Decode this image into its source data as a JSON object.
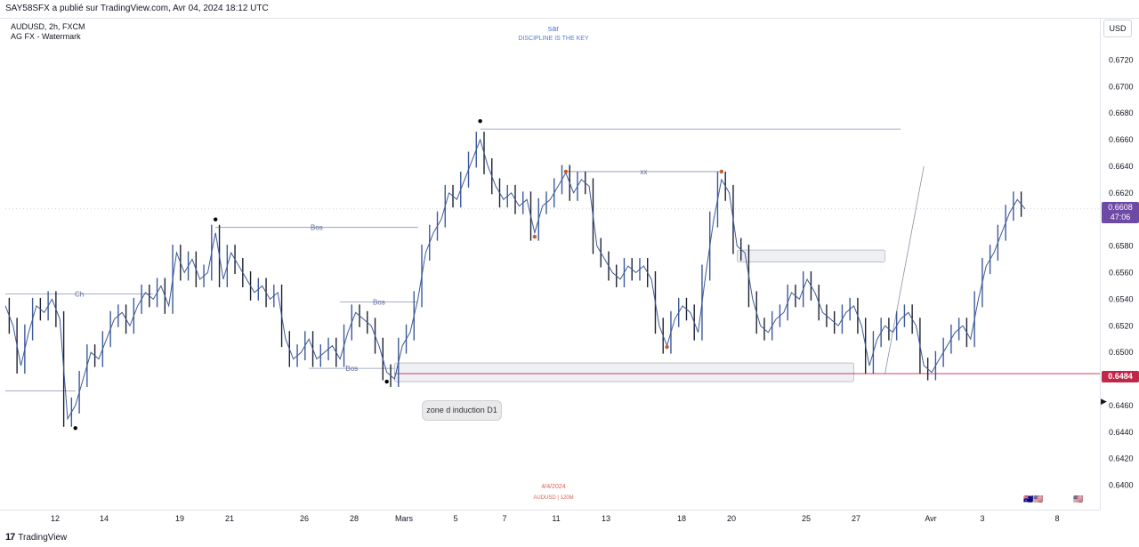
{
  "header": {
    "publisher_line": "SAY58SFX a publié sur TradingView.com, Avr 04, 2024 18:12 UTC",
    "symbol_line": "AUDUSD, 2h, FXCM",
    "indicator_line": "AG FX - Watermark",
    "currency_button": "USD"
  },
  "watermark": {
    "name": "sar",
    "motto": "DISCIPLINE IS THE KEY",
    "date": "4/4/2024",
    "pair": "AUDUSD | 120M"
  },
  "footer": {
    "brand": "TradingView"
  },
  "chart_data": {
    "type": "line",
    "instrument": "AUDUSD",
    "timeframe": "2h",
    "y_axis": {
      "ticks": [
        "0.6720",
        "0.6700",
        "0.6680",
        "0.6660",
        "0.6640",
        "0.6620",
        "0.6600",
        "0.6580",
        "0.6560",
        "0.6540",
        "0.6520",
        "0.6500",
        "0.6480",
        "0.6460",
        "0.6440",
        "0.6420",
        "0.6400"
      ],
      "range": [
        0.6385,
        0.6735
      ]
    },
    "x_axis": {
      "ticks": [
        "12",
        "14",
        "19",
        "21",
        "26",
        "28",
        "Mars",
        "5",
        "7",
        "11",
        "13",
        "18",
        "20",
        "25",
        "27",
        "Avr",
        "3",
        "8"
      ]
    },
    "current_price": {
      "value": "0.6608",
      "countdown": "47:06"
    },
    "key_level": {
      "value": "0.6484"
    },
    "series": [
      {
        "x": [
          "12",
          "14",
          "19",
          "21",
          "26",
          "28",
          "Mars",
          "5",
          "7",
          "11",
          "13",
          "18",
          "20",
          "25",
          "27",
          "Avr",
          "3"
        ],
        "values": [
          0.6525,
          0.645,
          0.6535,
          0.657,
          0.656,
          0.6495,
          0.651,
          0.6485,
          0.658,
          0.662,
          0.661,
          0.6565,
          0.652,
          0.653,
          0.6525,
          0.6495,
          0.652
        ]
      }
    ],
    "path": [
      [
        0,
        0.6535
      ],
      [
        1,
        0.652
      ],
      [
        2,
        0.649
      ],
      [
        3,
        0.6515
      ],
      [
        4,
        0.6535
      ],
      [
        5,
        0.653
      ],
      [
        6,
        0.654
      ],
      [
        7,
        0.6525
      ],
      [
        8,
        0.645
      ],
      [
        9,
        0.646
      ],
      [
        10,
        0.648
      ],
      [
        11,
        0.65
      ],
      [
        12,
        0.6495
      ],
      [
        13,
        0.651
      ],
      [
        14,
        0.6525
      ],
      [
        15,
        0.653
      ],
      [
        16,
        0.652
      ],
      [
        17,
        0.6535
      ],
      [
        18,
        0.6545
      ],
      [
        19,
        0.654
      ],
      [
        20,
        0.655
      ],
      [
        21,
        0.6535
      ],
      [
        22,
        0.6575
      ],
      [
        23,
        0.656
      ],
      [
        24,
        0.657
      ],
      [
        25,
        0.6555
      ],
      [
        26,
        0.656
      ],
      [
        27,
        0.659
      ],
      [
        28,
        0.6555
      ],
      [
        29,
        0.6575
      ],
      [
        30,
        0.6565
      ],
      [
        31,
        0.6555
      ],
      [
        32,
        0.6545
      ],
      [
        33,
        0.655
      ],
      [
        34,
        0.654
      ],
      [
        35,
        0.6545
      ],
      [
        36,
        0.651
      ],
      [
        37,
        0.6495
      ],
      [
        38,
        0.65
      ],
      [
        39,
        0.651
      ],
      [
        40,
        0.6495
      ],
      [
        41,
        0.65
      ],
      [
        42,
        0.6505
      ],
      [
        43,
        0.6495
      ],
      [
        44,
        0.6515
      ],
      [
        45,
        0.653
      ],
      [
        46,
        0.6525
      ],
      [
        47,
        0.652
      ],
      [
        48,
        0.6505
      ],
      [
        49,
        0.6485
      ],
      [
        50,
        0.648
      ],
      [
        51,
        0.6505
      ],
      [
        52,
        0.6515
      ],
      [
        53,
        0.654
      ],
      [
        54,
        0.6575
      ],
      [
        55,
        0.659
      ],
      [
        56,
        0.66
      ],
      [
        57,
        0.662
      ],
      [
        58,
        0.6615
      ],
      [
        59,
        0.663
      ],
      [
        60,
        0.6645
      ],
      [
        61,
        0.666
      ],
      [
        62,
        0.664
      ],
      [
        63,
        0.6625
      ],
      [
        64,
        0.6615
      ],
      [
        65,
        0.662
      ],
      [
        66,
        0.661
      ],
      [
        67,
        0.6615
      ],
      [
        68,
        0.659
      ],
      [
        69,
        0.661
      ],
      [
        70,
        0.6615
      ],
      [
        71,
        0.6625
      ],
      [
        72,
        0.6635
      ],
      [
        73,
        0.662
      ],
      [
        74,
        0.663
      ],
      [
        75,
        0.6625
      ],
      [
        76,
        0.658
      ],
      [
        77,
        0.657
      ],
      [
        78,
        0.656
      ],
      [
        79,
        0.6555
      ],
      [
        80,
        0.6565
      ],
      [
        81,
        0.656
      ],
      [
        82,
        0.6565
      ],
      [
        83,
        0.6555
      ],
      [
        84,
        0.652
      ],
      [
        85,
        0.6505
      ],
      [
        86,
        0.6525
      ],
      [
        87,
        0.6535
      ],
      [
        88,
        0.653
      ],
      [
        89,
        0.6515
      ],
      [
        90,
        0.656
      ],
      [
        91,
        0.66
      ],
      [
        92,
        0.663
      ],
      [
        93,
        0.662
      ],
      [
        94,
        0.658
      ],
      [
        95,
        0.6575
      ],
      [
        96,
        0.654
      ],
      [
        97,
        0.652
      ],
      [
        98,
        0.6515
      ],
      [
        99,
        0.6525
      ],
      [
        100,
        0.653
      ],
      [
        101,
        0.6545
      ],
      [
        102,
        0.654
      ],
      [
        103,
        0.6555
      ],
      [
        104,
        0.6545
      ],
      [
        105,
        0.653
      ],
      [
        106,
        0.6525
      ],
      [
        107,
        0.652
      ],
      [
        108,
        0.653
      ],
      [
        109,
        0.6535
      ],
      [
        110,
        0.652
      ],
      [
        111,
        0.649
      ],
      [
        112,
        0.651
      ],
      [
        113,
        0.652
      ],
      [
        114,
        0.6515
      ],
      [
        115,
        0.6525
      ],
      [
        116,
        0.653
      ],
      [
        117,
        0.652
      ],
      [
        118,
        0.649
      ],
      [
        119,
        0.6485
      ],
      [
        120,
        0.6495
      ],
      [
        121,
        0.6505
      ],
      [
        122,
        0.6515
      ],
      [
        123,
        0.652
      ],
      [
        124,
        0.651
      ],
      [
        125,
        0.654
      ],
      [
        126,
        0.6565
      ],
      [
        127,
        0.6575
      ],
      [
        128,
        0.659
      ],
      [
        129,
        0.6605
      ],
      [
        130,
        0.6615
      ],
      [
        131,
        0.6608
      ]
    ],
    "path_x_max": 131,
    "structure_lines": [
      {
        "label": "Ch",
        "x0": 0,
        "x1": 19,
        "y": 0.6544
      },
      {
        "label": "Bos",
        "x0": 27,
        "x1": 53,
        "y": 0.6594
      },
      {
        "label": "Bos",
        "x0": 43,
        "x1": 53,
        "y": 0.6538
      },
      {
        "label": "Bos",
        "x0": 39,
        "x1": 50,
        "y": 0.6488
      },
      {
        "label": "xx",
        "x0": 72,
        "x1": 92,
        "y": 0.6636
      },
      {
        "label": "",
        "x0": 61,
        "x1": 115,
        "y": 0.6668
      },
      {
        "label": "",
        "x0": 0,
        "x1": 9,
        "y": 0.6471
      }
    ],
    "zones": [
      {
        "label": "zone d induction D1",
        "x0": 50,
        "x1": 109,
        "y0": 0.6478,
        "y1": 0.6492
      },
      {
        "label": "",
        "x0": 94,
        "x1": 113,
        "y0": 0.6568,
        "y1": 0.6577
      }
    ],
    "swing_points": [
      {
        "x": 9,
        "y": 0.6443,
        "color": "#000000"
      },
      {
        "x": 27,
        "y": 0.66,
        "color": "#000000"
      },
      {
        "x": 49,
        "y": 0.6478,
        "color": "#000000"
      },
      {
        "x": 61,
        "y": 0.6674,
        "color": "#000000"
      },
      {
        "x": 68,
        "y": 0.6587,
        "color": "#c0602a"
      },
      {
        "x": 72,
        "y": 0.6636,
        "color": "#c0602a"
      },
      {
        "x": 92,
        "y": 0.6636,
        "color": "#c0602a"
      },
      {
        "x": 85,
        "y": 0.6504,
        "color": "#c0602a"
      }
    ],
    "colors": {
      "series": "#3d5a9b",
      "structure": "#8a93b3",
      "zone": "#c0284a",
      "current": "#6d4aa5"
    }
  }
}
